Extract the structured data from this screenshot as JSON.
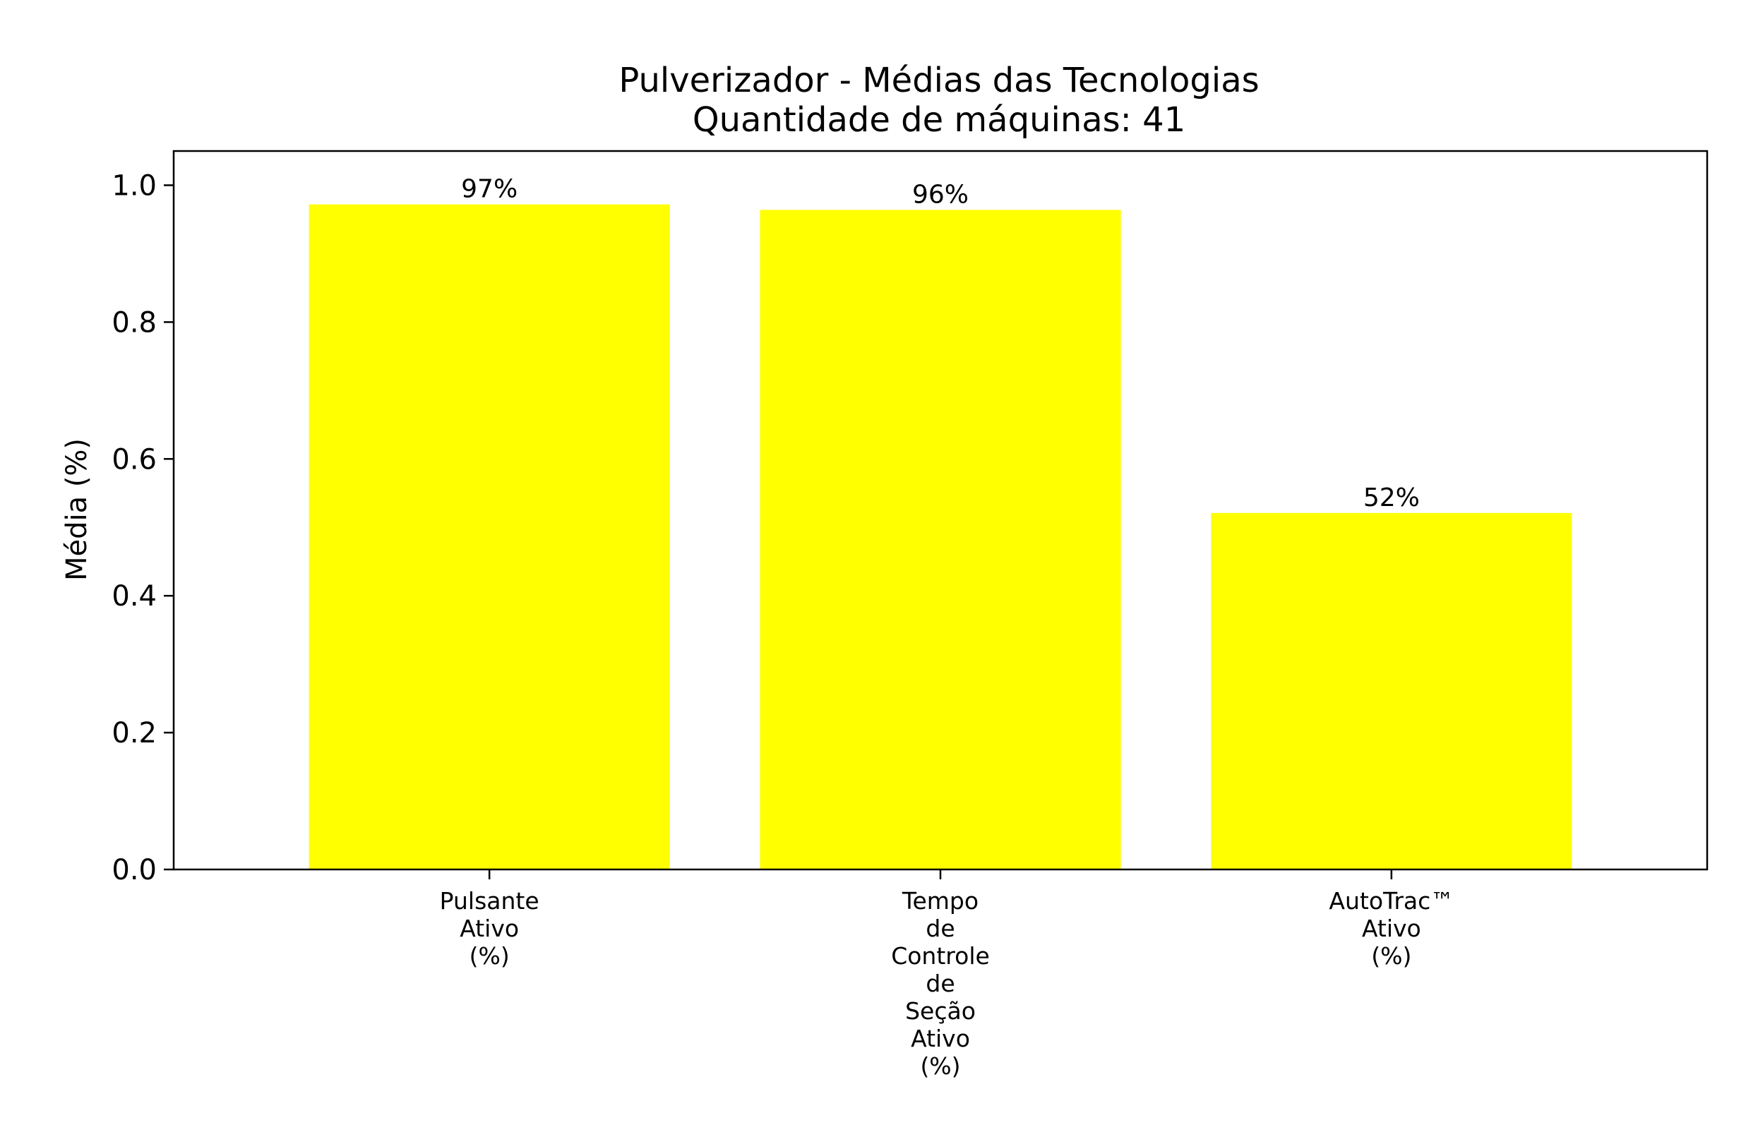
{
  "chart_data": {
    "type": "bar",
    "title": "Pulverizador - Médias das Tecnologias",
    "subtitle": "Quantidade de máquinas: 41",
    "xlabel": "",
    "ylabel": "Média (%)",
    "categories": [
      [
        "Pulsante",
        "Ativo",
        "(%)"
      ],
      [
        "Tempo",
        "de",
        "Controle",
        "de",
        "Seção",
        "Ativo",
        "(%)"
      ],
      [
        "AutoTrac™",
        "Ativo",
        "(%)"
      ]
    ],
    "values": [
      0.972,
      0.964,
      0.521
    ],
    "data_labels": [
      "97%",
      "96%",
      "52%"
    ],
    "ylim": [
      0,
      1.05
    ],
    "yticks": [
      0.0,
      0.2,
      0.4,
      0.6,
      0.8,
      1.0
    ],
    "ytick_labels": [
      "0.0",
      "0.2",
      "0.4",
      "0.6",
      "0.8",
      "1.0"
    ],
    "bar_color": "#ffff00",
    "grid": false,
    "legend": "none"
  }
}
